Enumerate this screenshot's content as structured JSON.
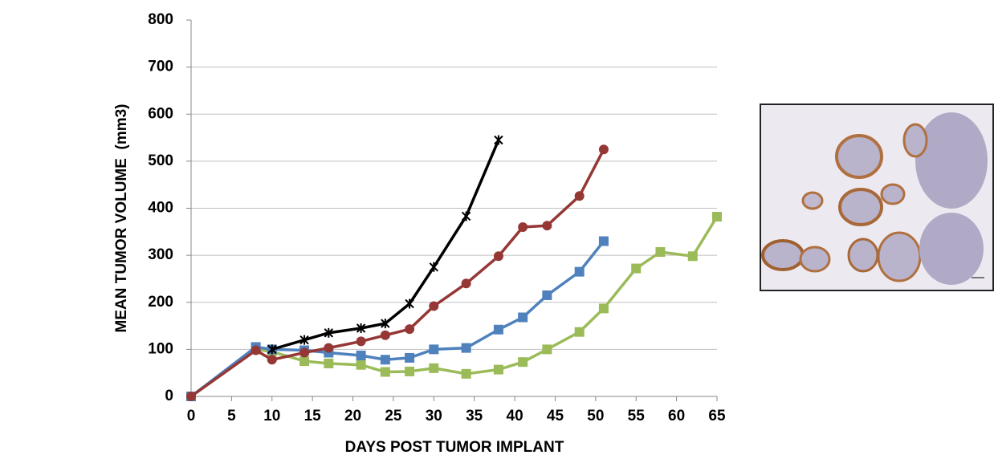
{
  "chart_data": {
    "type": "line",
    "x_label": "DAYS POST TUMOR IMPLANT",
    "y_label": "MEAN TUMOR VOLUME  (mm3)",
    "xlim": [
      0,
      65
    ],
    "xticks": [
      0,
      5,
      10,
      15,
      20,
      25,
      30,
      35,
      40,
      45,
      50,
      55,
      60,
      65
    ],
    "ylim": [
      0,
      800
    ],
    "yticks": [
      0,
      100,
      200,
      300,
      400,
      500,
      600,
      700,
      800
    ],
    "grid": true,
    "series": [
      {
        "color": "#9bbb59",
        "marker": "square",
        "x": [
          0,
          8,
          10,
          14,
          17,
          21,
          24,
          27,
          30,
          34,
          38,
          41,
          44,
          48,
          51,
          55,
          58,
          62,
          65
        ],
        "values": [
          0,
          100,
          95,
          75,
          70,
          67,
          52,
          53,
          60,
          48,
          57,
          73,
          100,
          137,
          187,
          272,
          307,
          298,
          382
        ]
      },
      {
        "color": "#4f81bd",
        "marker": "square",
        "x": [
          0,
          8,
          10,
          14,
          17,
          21,
          24,
          27,
          30,
          34,
          38,
          41,
          44,
          48,
          51
        ],
        "values": [
          0,
          105,
          100,
          98,
          93,
          87,
          78,
          82,
          100,
          103,
          142,
          168,
          215,
          265,
          330
        ]
      },
      {
        "color": "#953735",
        "marker": "circle",
        "x": [
          0,
          8,
          10,
          14,
          17,
          21,
          24,
          27,
          30,
          34,
          38,
          41,
          44,
          48,
          51
        ],
        "values": [
          0,
          98,
          78,
          93,
          103,
          117,
          130,
          143,
          192,
          240,
          298,
          360,
          363,
          426,
          525
        ]
      },
      {
        "color": "#000000",
        "marker": "star",
        "x": [
          10,
          14,
          17,
          21,
          24,
          27,
          30,
          34,
          38
        ],
        "values": [
          100,
          120,
          135,
          145,
          155,
          197,
          275,
          383,
          545
        ]
      }
    ]
  }
}
